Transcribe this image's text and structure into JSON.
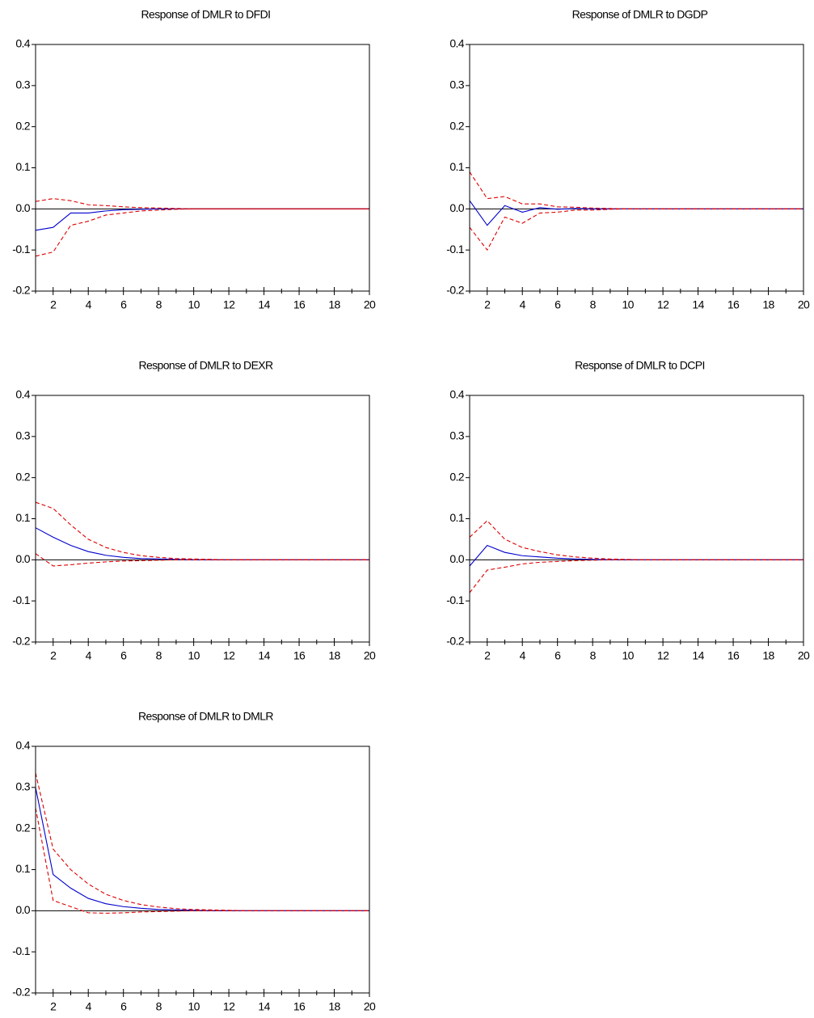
{
  "chart_data": [
    {
      "type": "line",
      "title": "Response of DMLR to DFDI",
      "x": [
        1,
        2,
        3,
        4,
        5,
        6,
        7,
        8,
        9,
        10,
        11,
        12,
        13,
        14,
        15,
        16,
        17,
        18,
        19,
        20
      ],
      "xlim": [
        1,
        20
      ],
      "xticks": [
        2,
        4,
        6,
        8,
        10,
        12,
        14,
        16,
        18,
        20
      ],
      "xminorticks": [
        1,
        3,
        5,
        7,
        9,
        11,
        13,
        15,
        17,
        19
      ],
      "ylim": [
        -0.2,
        0.4
      ],
      "yticks": [
        -0.2,
        -0.1,
        {
          "value": 0,
          "label": "0.0"
        },
        0.1,
        0.2,
        0.3,
        0.4
      ],
      "zero_line": true,
      "series": [
        {
          "color": "#0000cc",
          "style": "solid",
          "values": [
            -0.052,
            -0.045,
            -0.01,
            -0.01,
            -0.005,
            -0.002,
            -0.001,
            0,
            0,
            0,
            0,
            0,
            0,
            0,
            0,
            0,
            0,
            0,
            0,
            0
          ]
        },
        {
          "color": "#dd0000",
          "style": "dashed",
          "values": [
            0.018,
            0.025,
            0.02,
            0.01,
            0.008,
            0.005,
            0.003,
            0.002,
            0.001,
            0,
            0,
            0,
            0,
            0,
            0,
            0,
            0,
            0,
            0,
            0
          ]
        },
        {
          "color": "#dd0000",
          "style": "dashed",
          "values": [
            -0.115,
            -0.105,
            -0.04,
            -0.03,
            -0.015,
            -0.01,
            -0.005,
            -0.003,
            -0.001,
            0,
            0,
            0,
            0,
            0,
            0,
            0,
            0,
            0,
            0,
            0
          ]
        }
      ]
    },
    {
      "type": "line",
      "title": "Response of DMLR to DGDP",
      "x": [
        1,
        2,
        3,
        4,
        5,
        6,
        7,
        8,
        9,
        10,
        11,
        12,
        13,
        14,
        15,
        16,
        17,
        18,
        19,
        20
      ],
      "xlim": [
        1,
        20
      ],
      "xticks": [
        2,
        4,
        6,
        8,
        10,
        12,
        14,
        16,
        18,
        20
      ],
      "xminorticks": [
        1,
        3,
        5,
        7,
        9,
        11,
        13,
        15,
        17,
        19
      ],
      "ylim": [
        -0.2,
        0.4
      ],
      "yticks": [
        -0.2,
        -0.1,
        {
          "value": 0,
          "label": "0.0"
        },
        0.1,
        0.2,
        0.3,
        0.4
      ],
      "zero_line": true,
      "series": [
        {
          "color": "#0000cc",
          "style": "solid",
          "values": [
            0.02,
            -0.04,
            0.008,
            -0.008,
            0.003,
            -0.001,
            0.001,
            0,
            0,
            0,
            0,
            0,
            0,
            0,
            0,
            0,
            0,
            0,
            0,
            0
          ]
        },
        {
          "color": "#dd0000",
          "style": "dashed",
          "values": [
            0.09,
            0.025,
            0.03,
            0.012,
            0.012,
            0.005,
            0.004,
            0.002,
            0.001,
            0,
            0,
            0,
            0,
            0,
            0,
            0,
            0,
            0,
            0,
            0
          ]
        },
        {
          "color": "#dd0000",
          "style": "dashed",
          "values": [
            -0.045,
            -0.1,
            -0.02,
            -0.035,
            -0.01,
            -0.008,
            -0.003,
            -0.003,
            -0.001,
            0,
            0,
            0,
            0,
            0,
            0,
            0,
            0,
            0,
            0,
            0
          ]
        }
      ]
    },
    {
      "type": "line",
      "title": "Response of DMLR to DEXR",
      "x": [
        1,
        2,
        3,
        4,
        5,
        6,
        7,
        8,
        9,
        10,
        11,
        12,
        13,
        14,
        15,
        16,
        17,
        18,
        19,
        20
      ],
      "xlim": [
        1,
        20
      ],
      "xticks": [
        2,
        4,
        6,
        8,
        10,
        12,
        14,
        16,
        18,
        20
      ],
      "xminorticks": [
        1,
        3,
        5,
        7,
        9,
        11,
        13,
        15,
        17,
        19
      ],
      "ylim": [
        -0.2,
        0.4
      ],
      "yticks": [
        -0.2,
        -0.1,
        {
          "value": 0,
          "label": "0.0"
        },
        0.1,
        0.2,
        0.3,
        0.4
      ],
      "zero_line": true,
      "series": [
        {
          "color": "#0000cc",
          "style": "solid",
          "values": [
            0.078,
            0.055,
            0.035,
            0.02,
            0.011,
            0.006,
            0.003,
            0.002,
            0.001,
            0,
            0,
            0,
            0,
            0,
            0,
            0,
            0,
            0,
            0,
            0
          ]
        },
        {
          "color": "#dd0000",
          "style": "dashed",
          "values": [
            0.14,
            0.125,
            0.085,
            0.05,
            0.03,
            0.018,
            0.01,
            0.006,
            0.003,
            0.002,
            0.001,
            0,
            0,
            0,
            0,
            0,
            0,
            0,
            0,
            0
          ]
        },
        {
          "color": "#dd0000",
          "style": "dashed",
          "values": [
            0.015,
            -0.015,
            -0.012,
            -0.008,
            -0.005,
            -0.003,
            -0.002,
            -0.001,
            0,
            0,
            0,
            0,
            0,
            0,
            0,
            0,
            0,
            0,
            0,
            0
          ]
        }
      ]
    },
    {
      "type": "line",
      "title": "Response of DMLR to DCPI",
      "x": [
        1,
        2,
        3,
        4,
        5,
        6,
        7,
        8,
        9,
        10,
        11,
        12,
        13,
        14,
        15,
        16,
        17,
        18,
        19,
        20
      ],
      "xlim": [
        1,
        20
      ],
      "xticks": [
        2,
        4,
        6,
        8,
        10,
        12,
        14,
        16,
        18,
        20
      ],
      "xminorticks": [
        1,
        3,
        5,
        7,
        9,
        11,
        13,
        15,
        17,
        19
      ],
      "ylim": [
        -0.2,
        0.4
      ],
      "yticks": [
        -0.2,
        -0.1,
        {
          "value": 0,
          "label": "0.0"
        },
        0.1,
        0.2,
        0.3,
        0.4
      ],
      "zero_line": true,
      "series": [
        {
          "color": "#0000cc",
          "style": "solid",
          "values": [
            -0.015,
            0.035,
            0.018,
            0.01,
            0.007,
            0.004,
            0.002,
            0.001,
            0,
            0,
            0,
            0,
            0,
            0,
            0,
            0,
            0,
            0,
            0,
            0
          ]
        },
        {
          "color": "#dd0000",
          "style": "dashed",
          "values": [
            0.055,
            0.095,
            0.05,
            0.03,
            0.02,
            0.012,
            0.007,
            0.004,
            0.002,
            0.001,
            0,
            0,
            0,
            0,
            0,
            0,
            0,
            0,
            0,
            0
          ]
        },
        {
          "color": "#dd0000",
          "style": "dashed",
          "values": [
            -0.08,
            -0.025,
            -0.018,
            -0.01,
            -0.006,
            -0.004,
            -0.002,
            -0.001,
            0,
            0,
            0,
            0,
            0,
            0,
            0,
            0,
            0,
            0,
            0,
            0
          ]
        }
      ]
    },
    {
      "type": "line",
      "title": "Response of DMLR to DMLR",
      "x": [
        1,
        2,
        3,
        4,
        5,
        6,
        7,
        8,
        9,
        10,
        11,
        12,
        13,
        14,
        15,
        16,
        17,
        18,
        19,
        20
      ],
      "xlim": [
        1,
        20
      ],
      "xticks": [
        2,
        4,
        6,
        8,
        10,
        12,
        14,
        16,
        18,
        20
      ],
      "xminorticks": [
        1,
        3,
        5,
        7,
        9,
        11,
        13,
        15,
        17,
        19
      ],
      "ylim": [
        -0.2,
        0.4
      ],
      "yticks": [
        -0.2,
        -0.1,
        {
          "value": 0,
          "label": "0.0"
        },
        0.1,
        0.2,
        0.3,
        0.4
      ],
      "zero_line": true,
      "series": [
        {
          "color": "#0000cc",
          "style": "solid",
          "values": [
            0.3,
            0.088,
            0.055,
            0.03,
            0.017,
            0.01,
            0.006,
            0.003,
            0.002,
            0.001,
            0,
            0,
            0,
            0,
            0,
            0,
            0,
            0,
            0,
            0
          ]
        },
        {
          "color": "#dd0000",
          "style": "dashed",
          "values": [
            0.335,
            0.15,
            0.1,
            0.065,
            0.04,
            0.025,
            0.015,
            0.009,
            0.005,
            0.003,
            0.002,
            0.001,
            0,
            0,
            0,
            0,
            0,
            0,
            0,
            0
          ]
        },
        {
          "color": "#dd0000",
          "style": "dashed",
          "values": [
            0.25,
            0.025,
            0.01,
            -0.005,
            -0.006,
            -0.005,
            -0.003,
            -0.002,
            -0.001,
            0,
            0,
            0,
            0,
            0,
            0,
            0,
            0,
            0,
            0,
            0
          ]
        }
      ]
    }
  ]
}
